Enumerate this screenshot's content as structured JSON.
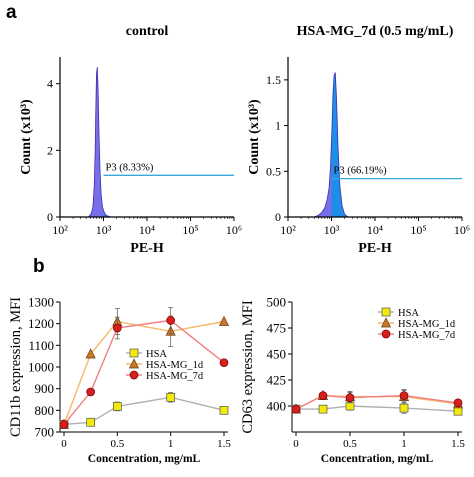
{
  "figure": {
    "panel_a": "a",
    "panel_b": "b"
  },
  "chart_data": [
    {
      "type": "area",
      "title": "control",
      "xlabel": "PE-H",
      "ylabel": "Count (x10³)",
      "x_scale": "log",
      "xlim": [
        100,
        1000000
      ],
      "x_ticks": [
        "10²",
        "10³",
        "10⁴",
        "10⁵",
        "10⁶"
      ],
      "ylim": [
        0,
        4.8
      ],
      "y_ticks": [
        "0",
        "2",
        "4"
      ],
      "gate": {
        "name": "P3",
        "label": "P3 (8.33%)",
        "percent": 8.33,
        "start": 1000,
        "level": 1.25
      },
      "histogram": {
        "x": [
          450,
          520,
          570,
          610,
          640,
          665,
          690,
          720,
          750,
          790,
          830,
          880,
          950,
          1030,
          1150,
          1300,
          1500
        ],
        "y": [
          0.0,
          0.1,
          0.3,
          0.9,
          1.9,
          3.2,
          4.3,
          4.5,
          3.8,
          2.5,
          1.4,
          0.7,
          0.3,
          0.15,
          0.05,
          0.02,
          0.0
        ]
      }
    },
    {
      "type": "area",
      "title": "HSA-MG_7d (0.5 mg/mL)",
      "xlabel": "PE-H",
      "ylabel": "Count (x10³)",
      "x_scale": "log",
      "xlim": [
        100,
        1000000
      ],
      "x_ticks": [
        "10²",
        "10³",
        "10⁴",
        "10⁵",
        "10⁶"
      ],
      "ylim": [
        0,
        1.75
      ],
      "y_ticks": [
        "0",
        "0.5",
        "1",
        "1.5"
      ],
      "gate": {
        "name": "P3",
        "label": "P3 (66.19%)",
        "percent": 66.19,
        "start": 1000,
        "level": 0.42
      },
      "histogram": {
        "x": [
          400,
          500,
          600,
          700,
          800,
          880,
          950,
          1020,
          1080,
          1150,
          1220,
          1300,
          1400,
          1550,
          1750,
          2000,
          2400
        ],
        "y": [
          0.0,
          0.02,
          0.05,
          0.1,
          0.2,
          0.32,
          0.55,
          0.95,
          1.35,
          1.55,
          1.58,
          1.3,
          0.8,
          0.35,
          0.12,
          0.03,
          0.0
        ]
      }
    },
    {
      "type": "line",
      "xlabel": "Concentration, mg/mL",
      "ylabel": "CD11b expression, MFI",
      "xlim": [
        0,
        1.5
      ],
      "x_ticks": [
        "0",
        "0.5",
        "1",
        "1.5"
      ],
      "ylim": [
        700,
        1300
      ],
      "y_ticks": [
        "700",
        "800",
        "900",
        "1000",
        "1100",
        "1200",
        "1300"
      ],
      "legend": "inside-lower-middle",
      "series": [
        {
          "name": "HSA",
          "color": "#b0b0b0",
          "marker": "square",
          "marker_color": "#f2ea0a",
          "x": [
            0,
            0.25,
            0.5,
            1.0,
            1.5
          ],
          "y": [
            735,
            745,
            818,
            860,
            800
          ],
          "err": [
            0,
            0,
            20,
            22,
            0
          ]
        },
        {
          "name": "HSA-MG_1d",
          "color": "#f5b86a",
          "marker": "triangle",
          "marker_color": "#c8782a",
          "x": [
            0,
            0.25,
            0.5,
            1.0,
            1.5
          ],
          "y": [
            735,
            1060,
            1210,
            1165,
            1210
          ],
          "err": [
            0,
            0,
            60,
            70,
            0
          ]
        },
        {
          "name": "HSA-MG_7d",
          "color": "#f08080",
          "marker": "circle",
          "marker_color": "#d61f1f",
          "x": [
            0,
            0.25,
            0.5,
            1.0,
            1.5
          ],
          "y": [
            735,
            885,
            1180,
            1215,
            1020
          ],
          "err": [
            0,
            0,
            50,
            60,
            0
          ]
        }
      ]
    },
    {
      "type": "line",
      "xlabel": "Concentration, mg/mL",
      "ylabel": "CD63 expression, MFI",
      "xlim": [
        0,
        1.5
      ],
      "x_ticks": [
        "0",
        "0.5",
        "1",
        "1.5"
      ],
      "ylim": [
        375,
        500
      ],
      "y_ticks": [
        "400",
        "425",
        "450",
        "475",
        "500"
      ],
      "legend": "top-left",
      "series": [
        {
          "name": "HSA",
          "color": "#b0b0b0",
          "marker": "square",
          "marker_color": "#f2ea0a",
          "x": [
            0,
            0.25,
            0.5,
            1.0,
            1.5
          ],
          "y": [
            397,
            397,
            400,
            398,
            395
          ],
          "err": [
            0,
            0,
            4,
            5,
            0
          ]
        },
        {
          "name": "HSA-MG_1d",
          "color": "#f5b86a",
          "marker": "triangle",
          "marker_color": "#c8782a",
          "x": [
            0,
            0.25,
            0.5,
            1.0,
            1.5
          ],
          "y": [
            397,
            410,
            409,
            409,
            402
          ],
          "err": [
            0,
            0,
            5,
            6,
            0
          ]
        },
        {
          "name": "HSA-MG_7d",
          "color": "#f08080",
          "marker": "circle",
          "marker_color": "#d61f1f",
          "x": [
            0,
            0.25,
            0.5,
            1.0,
            1.5
          ],
          "y": [
            397,
            410,
            408,
            410,
            403
          ],
          "err": [
            0,
            0,
            5,
            6,
            0
          ]
        }
      ]
    }
  ]
}
